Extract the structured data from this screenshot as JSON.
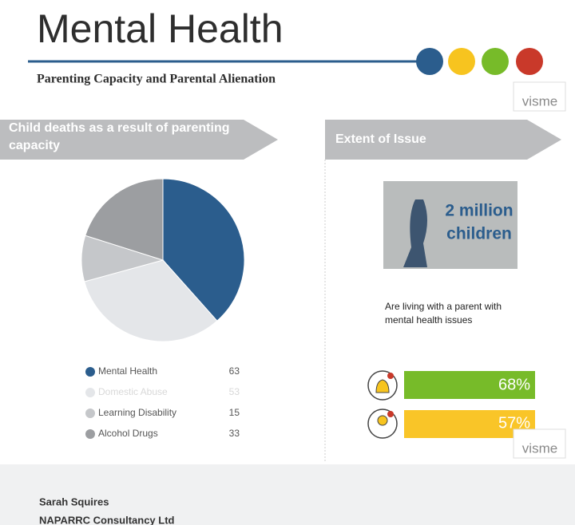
{
  "header": {
    "title": "Mental Health",
    "subtitle": "Parenting Capacity and Parental Alienation",
    "logo": "visme"
  },
  "left_section": {
    "heading_lines": [
      "Child deaths as a result of parenting",
      "capacity"
    ]
  },
  "chart_data": {
    "type": "pie",
    "categories": [
      "Mental Health",
      "Domestic Abuse",
      "Learning Disability",
      "Alcohol Drugs"
    ],
    "values": [
      63,
      53,
      15,
      33
    ],
    "colors": [
      "#2b5d8d",
      "#e4e6e9",
      "#c5c7ca",
      "#9c9ea1"
    ]
  },
  "right_section": {
    "heading": "Extent of Issue",
    "image_text_lines": [
      "2 million",
      "children"
    ],
    "description_lines": [
      "Are living with a parent with",
      "mental health issues"
    ],
    "stats": [
      "68%",
      "57%"
    ],
    "logo": "visme"
  },
  "footer": {
    "lines": [
      "Sarah Squires",
      "NAPARRC Consultancy Ltd"
    ]
  }
}
